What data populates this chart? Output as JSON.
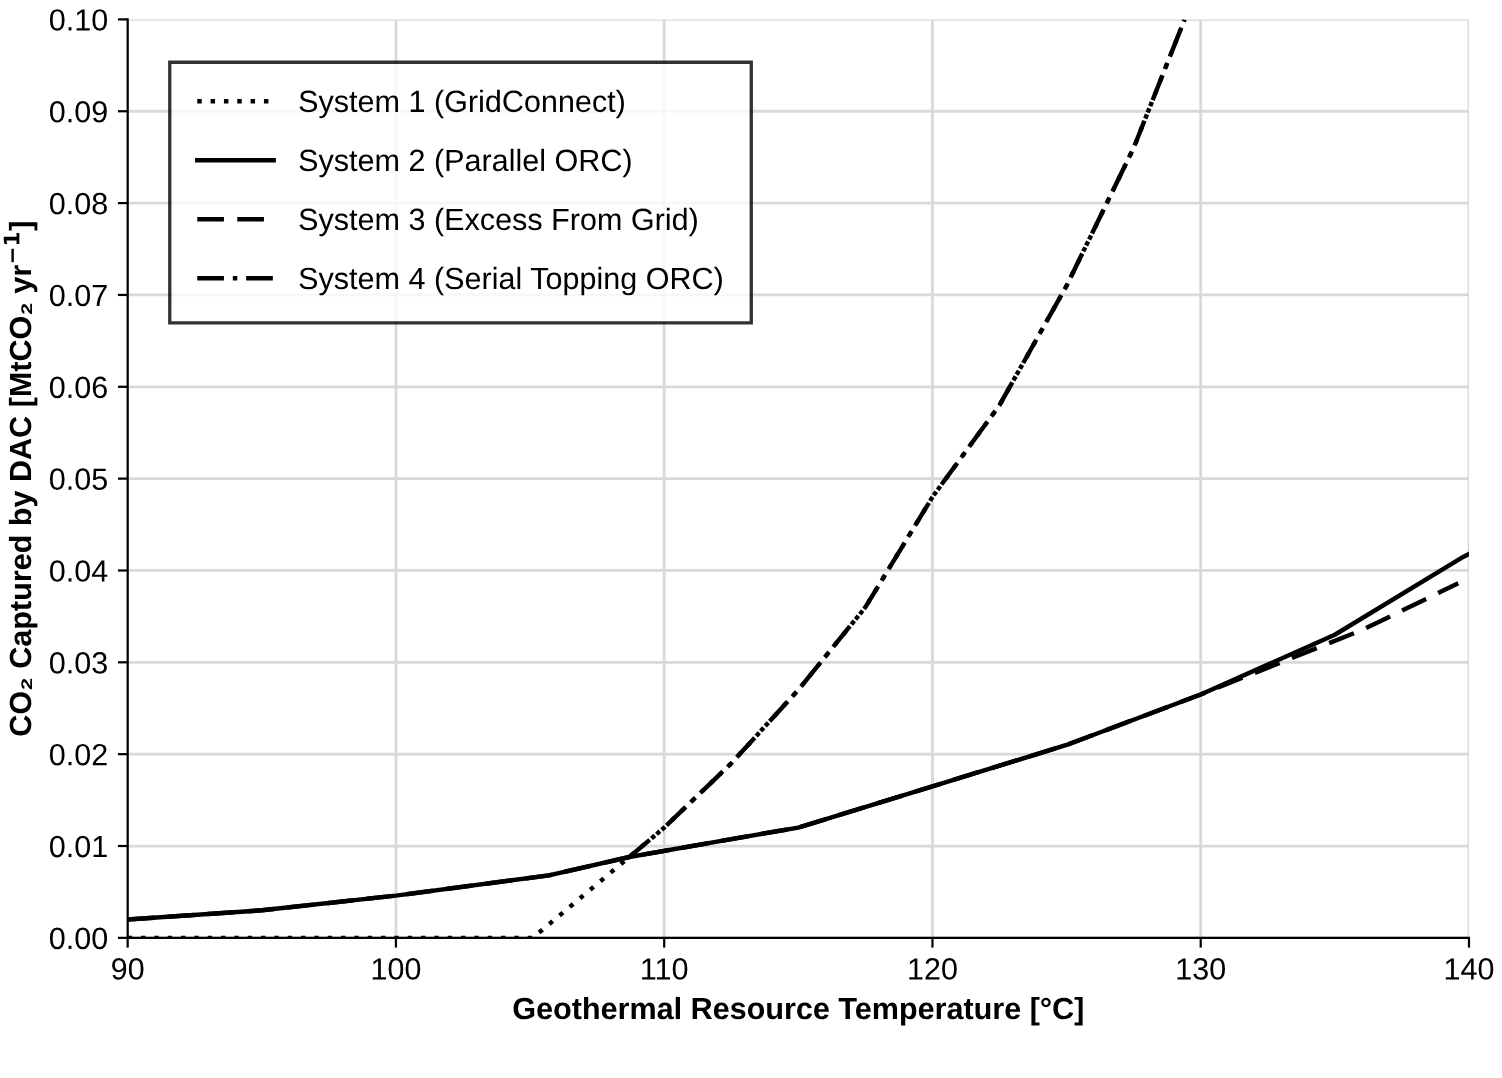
{
  "chart_data": {
    "type": "line",
    "xlabel": "Geothermal Resource Temperature [°C]",
    "ylabel": "CO₂ Captured by DAC [MtCO₂ yr$^{−1}$]",
    "xlim": [
      90,
      140
    ],
    "xticks": [
      90,
      100,
      110,
      120,
      130,
      140
    ],
    "ylim": [
      0,
      0.1
    ],
    "yticks": [
      {
        "value": 0,
        "label": "0.00"
      },
      {
        "value": 0.01,
        "label": "0.01"
      },
      {
        "value": 0.02,
        "label": "0.02"
      },
      {
        "value": 0.03,
        "label": "0.03"
      },
      {
        "value": 0.04,
        "label": "0.04"
      },
      {
        "value": 0.05,
        "label": "0.05"
      },
      {
        "value": 0.06,
        "label": "0.06"
      },
      {
        "value": 0.07,
        "label": "0.07"
      },
      {
        "value": 0.08,
        "label": "0.08"
      },
      {
        "value": 0.09,
        "label": "0.09"
      },
      {
        "value": 0.1,
        "label": "0.10"
      }
    ],
    "grid": true,
    "legend": "top left",
    "marker": "none",
    "series": [
      {
        "name": "System 1 (GridConnect)",
        "color": "#000000",
        "line_style": "dotted",
        "x": [
          90,
          105.1,
          108.7,
          110,
          112.5,
          115,
          117.5,
          120,
          122.5,
          125,
          127.5,
          129.4
        ],
        "values": [
          0,
          0,
          0.0088,
          0.012,
          0.019,
          0.027,
          0.036,
          0.048,
          0.058,
          0.071,
          0.086,
          0.1
        ]
      },
      {
        "name": "System 2 (Parallel ORC)",
        "color": "#000000",
        "line_style": "solid",
        "x": [
          90,
          95,
          100,
          105.7,
          108.7,
          112.4,
          115,
          120,
          125,
          130,
          135,
          139.8,
          140
        ],
        "values": [
          0.002,
          0.003,
          0.0046,
          0.0068,
          0.0088,
          0.0107,
          0.012,
          0.0165,
          0.021,
          0.0265,
          0.033,
          0.0415,
          0.0418
        ]
      },
      {
        "name": "System 3 (Excess From Grid)",
        "color": "#000000",
        "line_style": "dashed",
        "x": [
          90,
          95,
          100,
          105.7,
          108.7,
          112.4,
          115,
          120,
          125,
          130,
          133,
          136,
          139.6
        ],
        "values": [
          0.002,
          0.003,
          0.0046,
          0.0068,
          0.0088,
          0.0107,
          0.012,
          0.0165,
          0.021,
          0.0265,
          0.03,
          0.0335,
          0.0386
        ]
      },
      {
        "name": "System 4 (Serial Topping ORC)",
        "color": "#000000",
        "line_style": "dashdot",
        "x": [
          108.7,
          110,
          112.5,
          115,
          117.5,
          120,
          122.5,
          125,
          127.5,
          129.4
        ],
        "values": [
          0.0088,
          0.012,
          0.019,
          0.027,
          0.036,
          0.048,
          0.058,
          0.071,
          0.086,
          0.1
        ]
      }
    ]
  }
}
